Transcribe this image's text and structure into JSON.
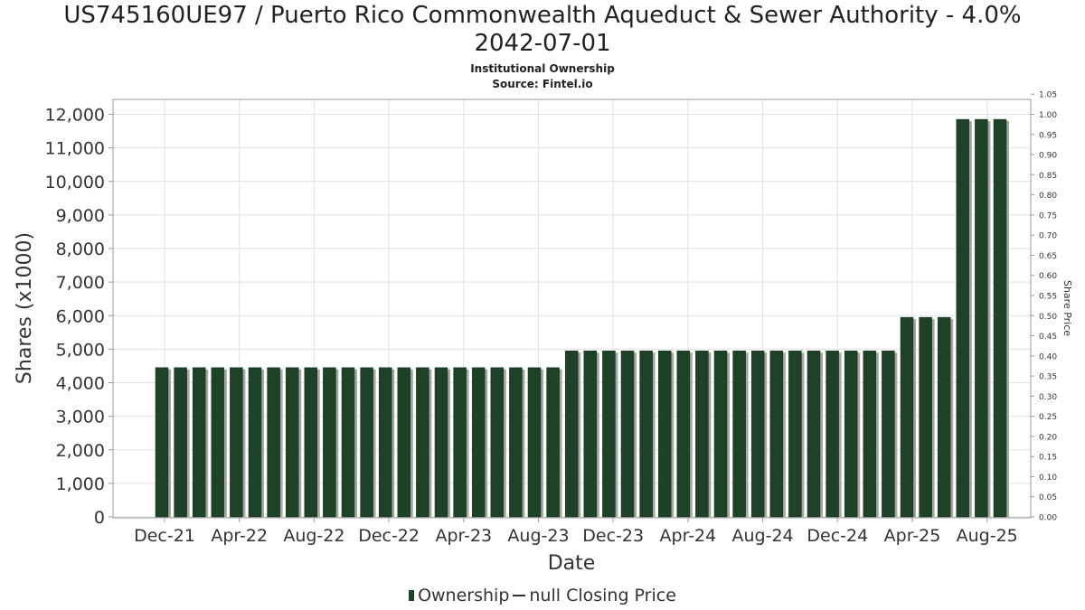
{
  "chart_data": {
    "type": "bar",
    "title_line1": "US745160UE97 / Puerto Rico Commonwealth Aqueduct & Sewer Authority - 4.0%",
    "title_line2": "2042-07-01",
    "subtitle": "Institutional Ownership",
    "source": "Source: Fintel.io",
    "xlabel": "Date",
    "ylabel": "Shares (x1000)",
    "y2label": "Share Price",
    "ylim": [
      0,
      12500
    ],
    "y2lim": [
      0,
      1.05
    ],
    "yticks": [
      "0",
      "1,000",
      "2,000",
      "3,000",
      "4,000",
      "5,000",
      "6,000",
      "7,000",
      "8,000",
      "9,000",
      "10,000",
      "11,000",
      "12,000"
    ],
    "y2ticks": [
      "0.00",
      "0.05",
      "0.10",
      "0.15",
      "0.20",
      "0.25",
      "0.30",
      "0.35",
      "0.40",
      "0.45",
      "0.50",
      "0.55",
      "0.60",
      "0.65",
      "0.70",
      "0.75",
      "0.80",
      "0.85",
      "0.90",
      "0.95",
      "1.00",
      "1.05"
    ],
    "xticks": [
      "Dec-21",
      "Apr-22",
      "Aug-22",
      "Dec-22",
      "Apr-23",
      "Aug-23",
      "Dec-23",
      "Apr-24",
      "Aug-24",
      "Dec-24",
      "Apr-25",
      "Aug-25"
    ],
    "grid": true,
    "legend_position": "bottom",
    "bar_color": "#1e4228",
    "series": [
      {
        "name": "Ownership",
        "values": [
          4450,
          4450,
          4450,
          4450,
          4450,
          4450,
          4450,
          4450,
          4450,
          4450,
          4450,
          4450,
          4450,
          4450,
          4450,
          4450,
          4450,
          4450,
          4450,
          4450,
          4450,
          4450,
          4950,
          4950,
          4950,
          4950,
          4950,
          4950,
          4950,
          4950,
          4950,
          4950,
          4950,
          4950,
          4950,
          4950,
          4950,
          4950,
          4950,
          4950,
          5950,
          5950,
          5950,
          11850,
          11850,
          11850
        ]
      },
      {
        "name": "null Closing Price",
        "values": []
      }
    ]
  },
  "legend": {
    "ownership_label": "Ownership",
    "price_label": "null Closing Price"
  }
}
